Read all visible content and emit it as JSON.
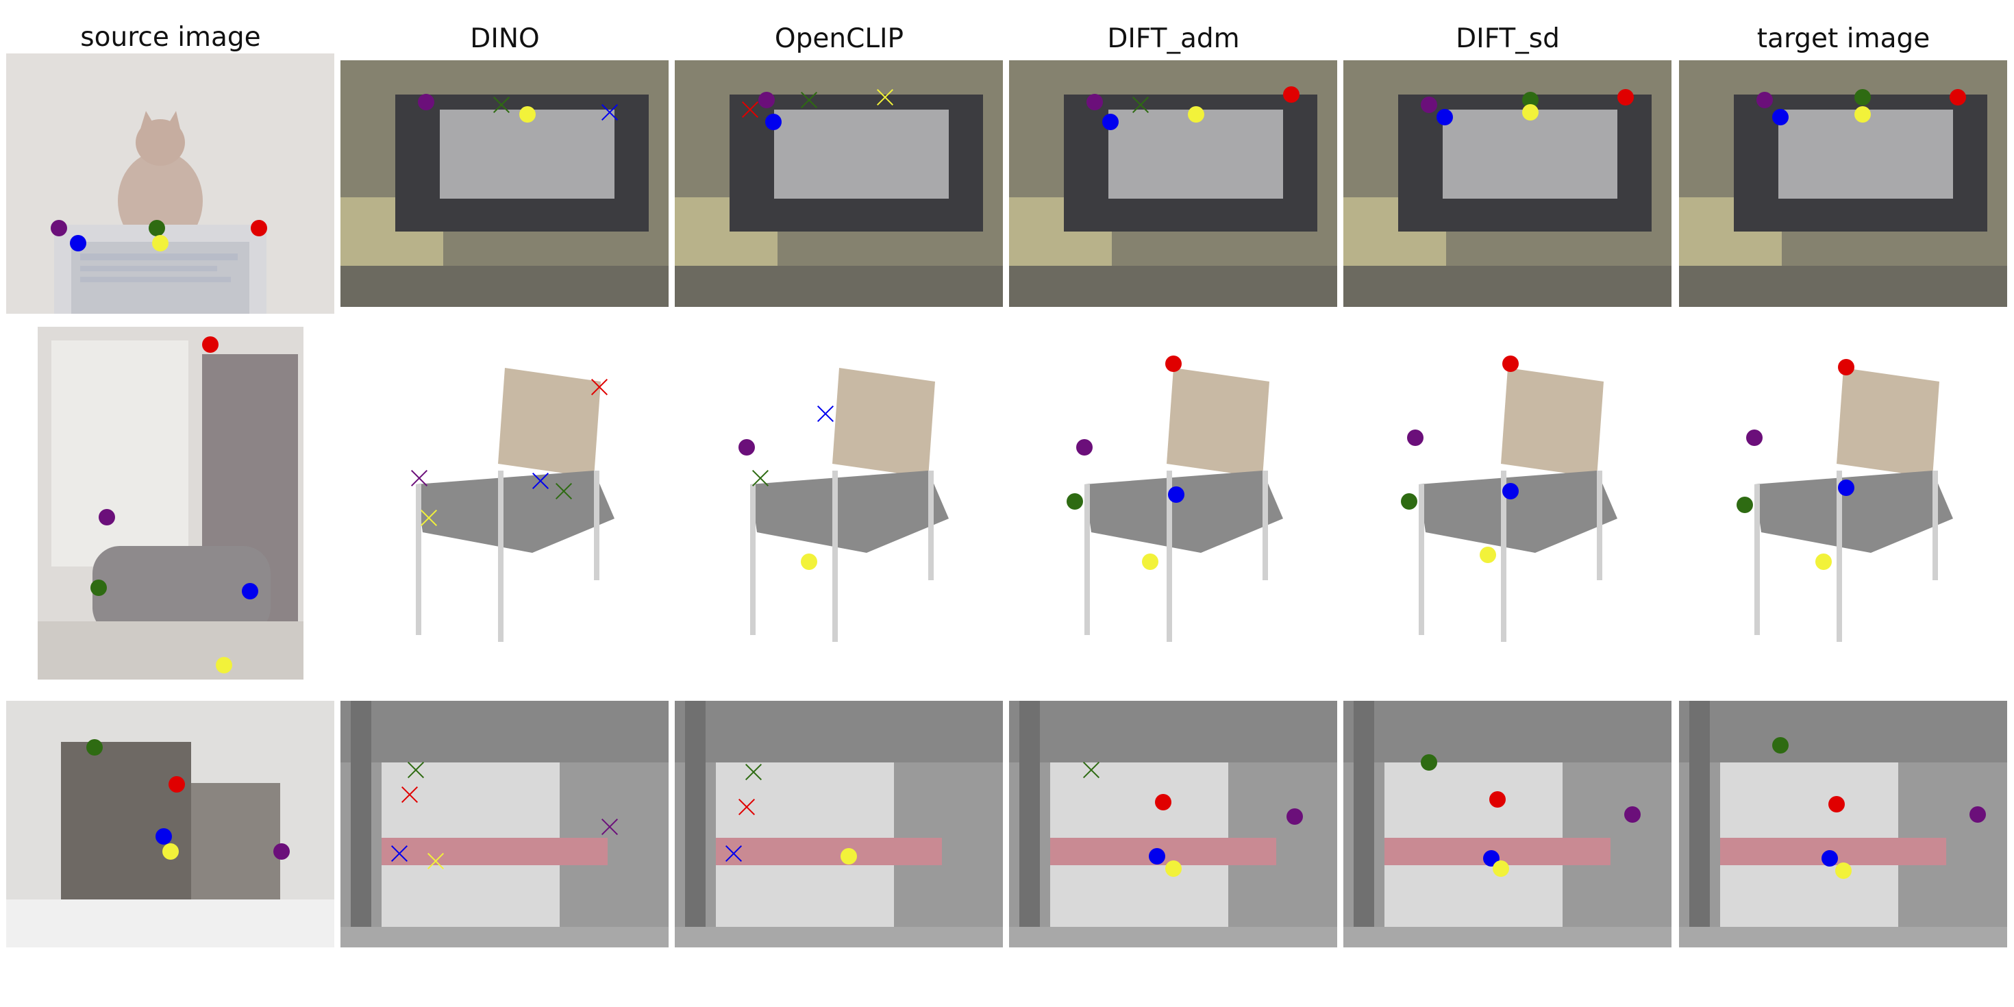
{
  "headers": [
    "source image",
    "DINO",
    "OpenCLIP",
    "DIFT_adm",
    "DIFT_sd",
    "target image"
  ],
  "colors": {
    "purple": "#6b0f7a",
    "blue": "#0000ee",
    "green": "#2e6b12",
    "yellow": "#f2f23a",
    "red": "#e00000"
  },
  "legend_note": "",
  "rows": [
    {
      "name": "row-monitor",
      "panels": [
        {
          "kind": "source",
          "points": [
            [
              "purple",
              0.16,
              0.67,
              "dot"
            ],
            [
              "blue",
              0.22,
              0.73,
              "dot"
            ],
            [
              "green",
              0.46,
              0.67,
              "dot"
            ],
            [
              "yellow",
              0.47,
              0.73,
              "dot"
            ],
            [
              "red",
              0.77,
              0.67,
              "dot"
            ]
          ]
        },
        {
          "kind": "dino",
          "points": [
            [
              "purple",
              0.26,
              0.17,
              "dot"
            ],
            [
              "green",
              0.49,
              0.18,
              "cross"
            ],
            [
              "yellow",
              0.57,
              0.22,
              "dot"
            ],
            [
              "blue",
              0.82,
              0.21,
              "cross"
            ]
          ]
        },
        {
          "kind": "openclip",
          "points": [
            [
              "red",
              0.23,
              0.2,
              "cross"
            ],
            [
              "purple",
              0.28,
              0.16,
              "dot"
            ],
            [
              "blue",
              0.3,
              0.25,
              "dot"
            ],
            [
              "green",
              0.41,
              0.16,
              "cross"
            ],
            [
              "yellow",
              0.64,
              0.15,
              "cross"
            ]
          ]
        },
        {
          "kind": "dift_adm",
          "points": [
            [
              "purple",
              0.26,
              0.17,
              "dot"
            ],
            [
              "blue",
              0.31,
              0.25,
              "dot"
            ],
            [
              "green",
              0.4,
              0.18,
              "cross"
            ],
            [
              "yellow",
              0.57,
              0.22,
              "dot"
            ],
            [
              "red",
              0.86,
              0.14,
              "dot"
            ]
          ]
        },
        {
          "kind": "dift_sd",
          "points": [
            [
              "purple",
              0.26,
              0.18,
              "dot"
            ],
            [
              "blue",
              0.31,
              0.23,
              "dot"
            ],
            [
              "green",
              0.57,
              0.16,
              "dot"
            ],
            [
              "yellow",
              0.57,
              0.21,
              "dot"
            ],
            [
              "red",
              0.86,
              0.15,
              "dot"
            ]
          ]
        },
        {
          "kind": "target",
          "points": [
            [
              "purple",
              0.26,
              0.16,
              "dot"
            ],
            [
              "blue",
              0.31,
              0.23,
              "dot"
            ],
            [
              "green",
              0.56,
              0.15,
              "dot"
            ],
            [
              "yellow",
              0.56,
              0.22,
              "dot"
            ],
            [
              "red",
              0.85,
              0.15,
              "dot"
            ]
          ]
        }
      ]
    },
    {
      "name": "row-chair",
      "panels": [
        {
          "kind": "source",
          "points": [
            [
              "red",
              0.65,
              0.05,
              "dot"
            ],
            [
              "purple",
              0.26,
              0.54,
              "dot"
            ],
            [
              "green",
              0.23,
              0.74,
              "dot"
            ],
            [
              "blue",
              0.8,
              0.75,
              "dot"
            ],
            [
              "yellow",
              0.7,
              0.96,
              "dot"
            ]
          ]
        },
        {
          "kind": "dino",
          "points": [
            [
              "red",
              0.79,
              0.18,
              "cross"
            ],
            [
              "purple",
              0.24,
              0.45,
              "cross"
            ],
            [
              "blue",
              0.61,
              0.46,
              "cross"
            ],
            [
              "green",
              0.68,
              0.49,
              "cross"
            ],
            [
              "yellow",
              0.27,
              0.57,
              "cross"
            ]
          ]
        },
        {
          "kind": "openclip",
          "points": [
            [
              "blue",
              0.46,
              0.26,
              "cross"
            ],
            [
              "purple",
              0.22,
              0.36,
              "dot"
            ],
            [
              "green",
              0.26,
              0.45,
              "cross"
            ],
            [
              "yellow",
              0.41,
              0.7,
              "dot"
            ]
          ]
        },
        {
          "kind": "dift_adm",
          "points": [
            [
              "red",
              0.5,
              0.11,
              "dot"
            ],
            [
              "purple",
              0.23,
              0.36,
              "dot"
            ],
            [
              "green",
              0.2,
              0.52,
              "dot"
            ],
            [
              "blue",
              0.51,
              0.5,
              "dot"
            ],
            [
              "yellow",
              0.43,
              0.7,
              "dot"
            ]
          ]
        },
        {
          "kind": "dift_sd",
          "points": [
            [
              "red",
              0.51,
              0.11,
              "dot"
            ],
            [
              "purple",
              0.22,
              0.33,
              "dot"
            ],
            [
              "green",
              0.2,
              0.52,
              "dot"
            ],
            [
              "blue",
              0.51,
              0.49,
              "dot"
            ],
            [
              "yellow",
              0.44,
              0.68,
              "dot"
            ]
          ]
        },
        {
          "kind": "target",
          "points": [
            [
              "red",
              0.51,
              0.12,
              "dot"
            ],
            [
              "purple",
              0.23,
              0.33,
              "dot"
            ],
            [
              "green",
              0.2,
              0.53,
              "dot"
            ],
            [
              "blue",
              0.51,
              0.48,
              "dot"
            ],
            [
              "yellow",
              0.44,
              0.7,
              "dot"
            ]
          ]
        }
      ]
    },
    {
      "name": "row-train",
      "panels": [
        {
          "kind": "source",
          "points": [
            [
              "green",
              0.27,
              0.19,
              "dot"
            ],
            [
              "red",
              0.52,
              0.34,
              "dot"
            ],
            [
              "blue",
              0.48,
              0.55,
              "dot"
            ],
            [
              "yellow",
              0.5,
              0.61,
              "dot"
            ],
            [
              "purple",
              0.84,
              0.61,
              "dot"
            ]
          ]
        },
        {
          "kind": "dino",
          "points": [
            [
              "green",
              0.23,
              0.28,
              "cross"
            ],
            [
              "red",
              0.21,
              0.38,
              "cross"
            ],
            [
              "blue",
              0.18,
              0.62,
              "cross"
            ],
            [
              "yellow",
              0.29,
              0.65,
              "cross"
            ],
            [
              "purple",
              0.82,
              0.51,
              "cross"
            ]
          ]
        },
        {
          "kind": "openclip",
          "points": [
            [
              "green",
              0.24,
              0.29,
              "cross"
            ],
            [
              "red",
              0.22,
              0.43,
              "cross"
            ],
            [
              "blue",
              0.18,
              0.62,
              "cross"
            ],
            [
              "yellow",
              0.53,
              0.63,
              "dot"
            ]
          ]
        },
        {
          "kind": "dift_adm",
          "points": [
            [
              "green",
              0.25,
              0.28,
              "cross"
            ],
            [
              "red",
              0.47,
              0.41,
              "dot"
            ],
            [
              "blue",
              0.45,
              0.63,
              "dot"
            ],
            [
              "yellow",
              0.5,
              0.68,
              "dot"
            ],
            [
              "purple",
              0.87,
              0.47,
              "dot"
            ]
          ]
        },
        {
          "kind": "dift_sd",
          "points": [
            [
              "green",
              0.26,
              0.25,
              "dot"
            ],
            [
              "red",
              0.47,
              0.4,
              "dot"
            ],
            [
              "blue",
              0.45,
              0.64,
              "dot"
            ],
            [
              "yellow",
              0.48,
              0.68,
              "dot"
            ],
            [
              "purple",
              0.88,
              0.46,
              "dot"
            ]
          ]
        },
        {
          "kind": "target",
          "points": [
            [
              "green",
              0.31,
              0.18,
              "dot"
            ],
            [
              "red",
              0.48,
              0.42,
              "dot"
            ],
            [
              "blue",
              0.46,
              0.64,
              "dot"
            ],
            [
              "yellow",
              0.5,
              0.69,
              "dot"
            ],
            [
              "purple",
              0.91,
              0.46,
              "dot"
            ]
          ]
        }
      ]
    }
  ]
}
